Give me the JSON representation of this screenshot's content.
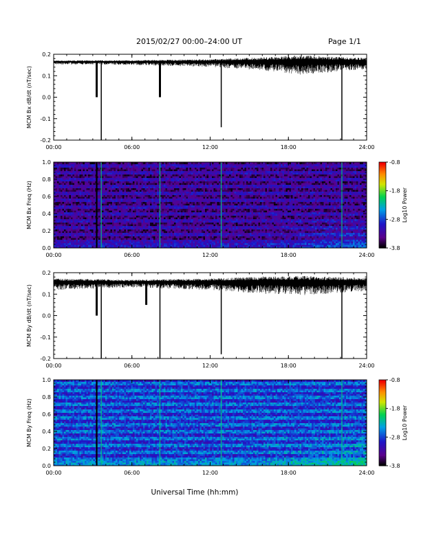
{
  "header": {
    "title": "2015/02/27  00:00–24:00 UT",
    "page": "Page 1/1"
  },
  "xlabel": "Universal Time (hh:mm)",
  "colors": {
    "trace": "#000000",
    "frame": "#000000"
  },
  "chart_data": [
    {
      "type": "line",
      "ylabel": "MCM Bx dB/dt (nT/sec)",
      "xlim": [
        0,
        24
      ],
      "ylim": [
        -0.2,
        0.2
      ],
      "x_ticks": [
        "00:00",
        "06:00",
        "12:00",
        "18:00",
        "24:00"
      ],
      "y_ticks": [
        "-0.2",
        "-0.1",
        "0.0",
        "0.1",
        "0.2"
      ],
      "series": [
        {
          "baseline": 0.165,
          "noise": [
            [
              0,
              0.01
            ],
            [
              6,
              0.012
            ],
            [
              12,
              0.02
            ],
            [
              16,
              0.035
            ],
            [
              19,
              0.05
            ],
            [
              24,
              0.03
            ]
          ],
          "spikes": [
            [
              3.3,
              0.0
            ],
            [
              3.65,
              -0.2
            ],
            [
              8.15,
              0.0
            ],
            [
              12.85,
              -0.14
            ],
            [
              22.1,
              -0.2
            ]
          ]
        }
      ]
    },
    {
      "type": "heatmap",
      "ylabel": "MCM Bx Freq (Hz)",
      "colorbar_label": "Log10 Power",
      "colorbar_ticks": [
        "-0.8",
        "-1.8",
        "-2.8",
        "-3.8"
      ],
      "xlim": [
        0,
        24
      ],
      "ylim": [
        0,
        1.0
      ],
      "x_ticks": [
        "00:00",
        "06:00",
        "12:00",
        "18:00",
        "24:00"
      ],
      "y_ticks": [
        "0.0",
        "0.2",
        "0.4",
        "0.6",
        "0.8",
        "1.0"
      ],
      "base_level": -3.5,
      "harmonic_lines_hz": [
        0.08,
        0.16,
        0.24,
        0.32,
        0.4,
        0.48,
        0.56,
        0.64,
        0.72,
        0.8,
        0.88,
        0.96
      ],
      "vertical_lines_hr": [
        3.3,
        3.65,
        8.15,
        12.85,
        22.1
      ]
    },
    {
      "type": "line",
      "ylabel": "MCM By dB/dt (nT/sec)",
      "xlim": [
        0,
        24
      ],
      "ylim": [
        -0.2,
        0.2
      ],
      "x_ticks": [
        "00:00",
        "06:00",
        "12:00",
        "18:00",
        "24:00"
      ],
      "y_ticks": [
        "-0.2",
        "-0.1",
        "0.0",
        "0.1",
        "0.2"
      ],
      "series": [
        {
          "baseline": 0.155,
          "noise": [
            [
              0,
              0.03
            ],
            [
              6,
              0.02
            ],
            [
              12,
              0.03
            ],
            [
              16,
              0.045
            ],
            [
              19,
              0.05
            ],
            [
              24,
              0.035
            ]
          ],
          "spikes": [
            [
              3.3,
              0.0
            ],
            [
              3.65,
              -0.2
            ],
            [
              7.1,
              0.05
            ],
            [
              8.15,
              -0.2
            ],
            [
              12.85,
              -0.18
            ],
            [
              22.1,
              -0.2
            ]
          ]
        }
      ]
    },
    {
      "type": "heatmap",
      "ylabel": "MCM By Freq (Hz)",
      "colorbar_label": "Log10 Power",
      "colorbar_ticks": [
        "-0.8",
        "-1.8",
        "-2.8",
        "-3.8"
      ],
      "xlim": [
        0,
        24
      ],
      "ylim": [
        0,
        1.0
      ],
      "x_ticks": [
        "00:00",
        "06:00",
        "12:00",
        "18:00",
        "24:00"
      ],
      "y_ticks": [
        "0.0",
        "0.2",
        "0.4",
        "0.6",
        "0.8",
        "1.0"
      ],
      "base_level": -2.95,
      "harmonic_lines_hz": [
        0.08,
        0.16,
        0.24,
        0.32,
        0.4,
        0.48,
        0.56,
        0.64,
        0.72,
        0.8,
        0.88,
        0.96
      ],
      "vertical_lines_hr": [
        3.3,
        3.65,
        8.15,
        12.85,
        22.1
      ]
    }
  ]
}
